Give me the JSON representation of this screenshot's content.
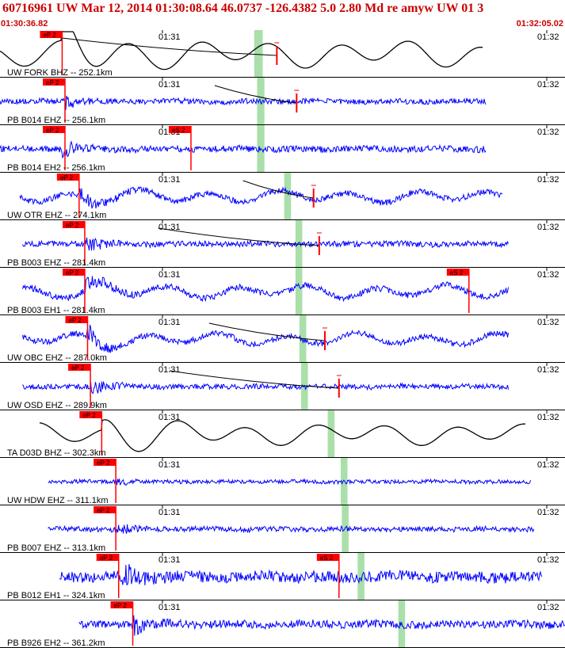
{
  "header": {
    "title": "60716961 UW Mar 12, 2014 01:30:08.64   46.0737 -126.4382  5.0 2.80 Md re amyw UW 01   3",
    "start_time": "01:30:36.82",
    "end_time": "01:32:05.02"
  },
  "tick_labels": {
    "t1": "01:31",
    "t2": "01:32"
  },
  "colors": {
    "trace_blue": "#0000ff",
    "trace_black": "#000000",
    "pick": "#ff0000",
    "window": "#aadfaa",
    "header_text": "#cc0000"
  },
  "traces": [
    {
      "label": "UW FORK BHZ -- 252.1km",
      "color": "black",
      "style": "smooth",
      "start": 0.0,
      "end": 0.855,
      "amp": 0.4,
      "ep": 0.11,
      "es": null,
      "win": [
        0.45,
        0.465
      ],
      "arrival": 0.108,
      "decay": 0.25,
      "s_mark": 0.49,
      "moveout": [
        0.11,
        0.49
      ]
    },
    {
      "label": "PB B014 EHZ -- 256.1km",
      "color": "blue",
      "style": "noisy",
      "start": 0.0,
      "end": 0.86,
      "amp": 0.13,
      "ep": 0.115,
      "es": null,
      "win": [
        0.455,
        0.468
      ],
      "arrival": 0.11,
      "decay": 0.1,
      "s_mark": 0.525,
      "moveout": [
        0.38,
        0.525
      ]
    },
    {
      "label": "PB B014 EH2 -- 256.1km",
      "color": "blue",
      "style": "noisy",
      "start": 0.0,
      "end": 0.86,
      "amp": 0.15,
      "ep": 0.115,
      "es": 0.338,
      "win": [
        0.455,
        0.468
      ],
      "arrival": 0.11,
      "decay": 0.1,
      "s_mark": null,
      "moveout": null
    },
    {
      "label": "UW OTR EHZ -- 274.1km",
      "color": "blue",
      "style": "mixed",
      "start": 0.035,
      "end": 0.89,
      "amp": 0.3,
      "ep": 0.14,
      "es": null,
      "win": [
        0.503,
        0.515
      ],
      "arrival": 0.14,
      "decay": 0.15,
      "s_mark": 0.555,
      "moveout": [
        0.43,
        0.555
      ]
    },
    {
      "label": "PB B003 EHZ -- 281.4km",
      "color": "blue",
      "style": "noisy",
      "start": 0.04,
      "end": 0.9,
      "amp": 0.13,
      "ep": 0.15,
      "es": null,
      "win": [
        0.523,
        0.535
      ],
      "arrival": 0.15,
      "decay": 0.12,
      "s_mark": 0.565,
      "moveout": [
        0.28,
        0.565
      ]
    },
    {
      "label": "PB B003 EH1 -- 281.4km",
      "color": "blue",
      "style": "mixed",
      "start": 0.04,
      "end": 0.9,
      "amp": 0.32,
      "ep": 0.15,
      "es": 0.83,
      "win": [
        0.523,
        0.535
      ],
      "arrival": 0.15,
      "decay": 0.12,
      "s_mark": null,
      "moveout": null
    },
    {
      "label": "UW OBC EHZ -- 287.0km",
      "color": "blue",
      "style": "mixed",
      "start": 0.04,
      "end": 0.9,
      "amp": 0.3,
      "ep": 0.155,
      "es": null,
      "win": [
        0.53,
        0.542
      ],
      "arrival": 0.155,
      "decay": 0.12,
      "s_mark": 0.575,
      "moveout": [
        0.37,
        0.575
      ]
    },
    {
      "label": "UW OSD EHZ -- 289.9km",
      "color": "blue",
      "style": "noisy",
      "start": 0.04,
      "end": 0.9,
      "amp": 0.12,
      "ep": 0.16,
      "es": null,
      "win": [
        0.533,
        0.545
      ],
      "arrival": 0.16,
      "decay": 0.12,
      "s_mark": 0.6,
      "moveout": [
        0.3,
        0.6
      ]
    },
    {
      "label": "TA D03D BHZ -- 302.3km",
      "color": "black",
      "style": "smooth",
      "start": 0.07,
      "end": 0.93,
      "amp": 0.32,
      "ep": 0.18,
      "es": null,
      "win": [
        0.58,
        0.592
      ],
      "arrival": 0.18,
      "decay": 0.25,
      "s_mark": null,
      "moveout": null
    },
    {
      "label": "UW HDW EHZ -- 311.1km",
      "color": "blue",
      "style": "noisy",
      "start": 0.085,
      "end": 0.94,
      "amp": 0.09,
      "ep": 0.205,
      "es": null,
      "win": [
        0.603,
        0.615
      ],
      "arrival": 0.205,
      "decay": 0.08,
      "s_mark": null,
      "moveout": null
    },
    {
      "label": "PB B007 EHZ -- 313.1km",
      "color": "blue",
      "style": "noisy",
      "start": 0.085,
      "end": 0.945,
      "amp": 0.12,
      "ep": 0.205,
      "es": null,
      "win": [
        0.605,
        0.617
      ],
      "arrival": 0.205,
      "decay": 0.08,
      "s_mark": null,
      "moveout": null
    },
    {
      "label": "PB B012 EH1 -- 324.1km",
      "color": "blue",
      "style": "noisy",
      "start": 0.105,
      "end": 0.96,
      "amp": 0.26,
      "ep": 0.21,
      "es": 0.6,
      "win": [
        0.633,
        0.645
      ],
      "arrival": 0.21,
      "decay": 0.1,
      "s_mark": null,
      "moveout": null
    },
    {
      "label": "PB B926 EH2 -- 361.2km",
      "color": "blue",
      "style": "noisy",
      "start": 0.14,
      "end": 1.0,
      "amp": 0.18,
      "ep": 0.235,
      "es": null,
      "win": [
        0.705,
        0.717
      ],
      "arrival": 0.235,
      "decay": 0.1,
      "s_mark": null,
      "moveout": null
    }
  ]
}
